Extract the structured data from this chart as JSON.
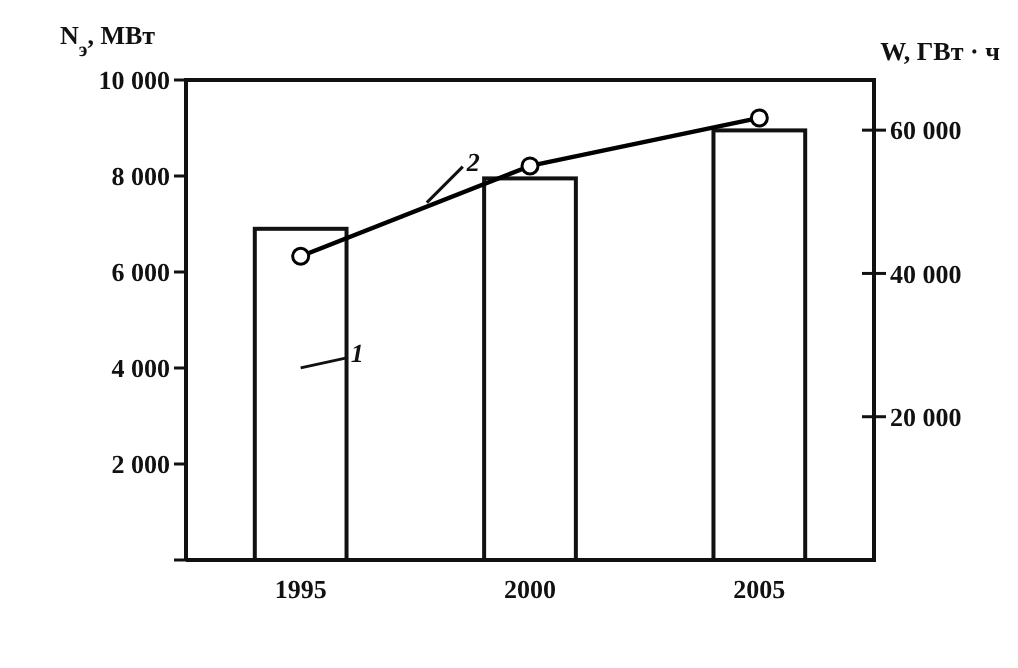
{
  "chart_data": {
    "type": "bar",
    "ylabel": "N$_{э}$, МВт",
    "y2label": "W, ГВт · ч",
    "categories": [
      "1995",
      "2000",
      "2005"
    ],
    "series": [
      {
        "name": "1",
        "color": "#ffffff",
        "values": [
          6900,
          7950,
          8950
        ]
      },
      {
        "name": "2",
        "type": "line",
        "axis": "y2",
        "color": "#000000",
        "values": [
          42400,
          55000,
          61700
        ]
      }
    ],
    "ylim": [
      0,
      10000
    ],
    "yticks": [
      {
        "value": 0,
        "label": null
      },
      {
        "value": 2000,
        "label": "2 000"
      },
      {
        "value": 4000,
        "label": "4 000"
      },
      {
        "value": 6000,
        "label": "6 000"
      },
      {
        "value": 8000,
        "label": "8 000"
      },
      {
        "value": 10000,
        "label": "10 000"
      }
    ],
    "y2lim": [
      0,
      67000
    ],
    "y2ticks": [
      {
        "value": 20000,
        "label": "20 000"
      },
      {
        "value": 40000,
        "label": "40 000"
      },
      {
        "value": 60000,
        "label": "60 000"
      }
    ],
    "marker": "circle",
    "line_style": "solid",
    "grid": false
  }
}
